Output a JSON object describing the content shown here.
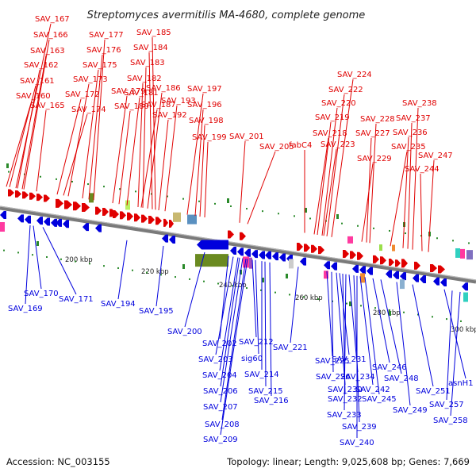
{
  "title": "Streptomyces avermitilis MA-4680, complete genome",
  "accession": "Accession: NC_003155",
  "summary": "Topology: linear; Length: 9,025,608 bp; Genes: 7,669",
  "colors": {
    "top_strand": "#e00000",
    "bottom_strand": "#0000dd",
    "backbone": "#777777",
    "gc_marker": "#2a8a2a"
  },
  "axis_ticks": [
    "200 kbp",
    "220 kbp",
    "240 kbp",
    "260 kbp",
    "280 kbp",
    "300 kbp"
  ],
  "top_genes": [
    "SAV_167",
    "SAV_166",
    "SAV_163",
    "SAV_162",
    "SAV_161",
    "SAV_160",
    "SAV_165",
    "SAV_177",
    "SAV_176",
    "SAV_175",
    "SAV_173",
    "SAV_172",
    "SAV_174",
    "SAV_185",
    "SAV_184",
    "SAV_183",
    "SAV_182",
    "SAV_181",
    "SAV_179",
    "SAV_180",
    "SAV_186",
    "SAV_187",
    "SAV_193",
    "SAV_192",
    "SAV_197",
    "SAV_196",
    "SAV_198",
    "SAV_199",
    "SAV_201",
    "SAV_205",
    "SAV_224",
    "SAV_222",
    "SAV_220",
    "SAV_219",
    "SAV_218",
    "fabC4",
    "SAV_223",
    "SAV_228",
    "SAV_227",
    "SAV_229",
    "SAV_238",
    "SAV_237",
    "SAV_236",
    "SAV_235",
    "SAV_247",
    "SAV_244"
  ],
  "bottom_genes": [
    "SAV_170",
    "SAV_169",
    "SAV_171",
    "SAV_194",
    "SAV_195",
    "SAV_200",
    "SAV_202",
    "SAV_203",
    "SAV_204",
    "SAV_206",
    "SAV_207",
    "SAV_208",
    "SAV_209",
    "SAV_212",
    "sig60",
    "SAV_214",
    "SAV_215",
    "SAV_216",
    "SAV_221",
    "SAV_225",
    "SAV_226",
    "SAV_230",
    "SAV_231",
    "SAV_232",
    "SAV_233",
    "SAV_234",
    "SAV_239",
    "SAV_240",
    "SAV_242",
    "SAV_245",
    "SAV_246",
    "SAV_248",
    "SAV_249",
    "SAV_251",
    "asnH1",
    "SAV_257",
    "SAV_258"
  ]
}
